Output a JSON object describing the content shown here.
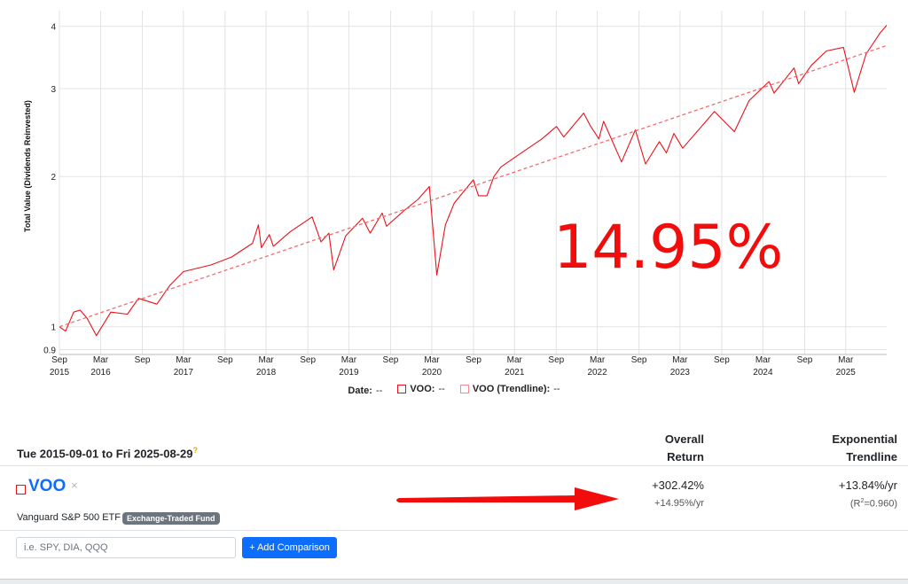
{
  "chart_data": {
    "type": "line",
    "ylabel": "Total Value (Dividends Reinvested)",
    "y_scale": "log",
    "ylim": [
      0.88,
      4.3
    ],
    "yticks": [
      {
        "value": 0.9,
        "label": "0.9"
      },
      {
        "value": 1,
        "label": "1"
      },
      {
        "value": 2,
        "label": "2"
      },
      {
        "value": 3,
        "label": "3"
      },
      {
        "value": 4,
        "label": "4"
      }
    ],
    "xlim": [
      "2015-09-01",
      "2025-08-29"
    ],
    "xticks": [
      {
        "date": "2015-09-01",
        "line1": "Sep",
        "line2": "2015"
      },
      {
        "date": "2016-03-01",
        "line1": "Mar",
        "line2": "2016"
      },
      {
        "date": "2016-09-01",
        "line1": "Sep",
        "line2": ""
      },
      {
        "date": "2017-03-01",
        "line1": "Mar",
        "line2": "2017"
      },
      {
        "date": "2017-09-01",
        "line1": "Sep",
        "line2": ""
      },
      {
        "date": "2018-03-01",
        "line1": "Mar",
        "line2": "2018"
      },
      {
        "date": "2018-09-01",
        "line1": "Sep",
        "line2": ""
      },
      {
        "date": "2019-03-01",
        "line1": "Mar",
        "line2": "2019"
      },
      {
        "date": "2019-09-01",
        "line1": "Sep",
        "line2": ""
      },
      {
        "date": "2020-03-01",
        "line1": "Mar",
        "line2": "2020"
      },
      {
        "date": "2020-09-01",
        "line1": "Sep",
        "line2": ""
      },
      {
        "date": "2021-03-01",
        "line1": "Mar",
        "line2": "2021"
      },
      {
        "date": "2021-09-01",
        "line1": "Sep",
        "line2": ""
      },
      {
        "date": "2022-03-01",
        "line1": "Mar",
        "line2": "2022"
      },
      {
        "date": "2022-09-01",
        "line1": "Sep",
        "line2": ""
      },
      {
        "date": "2023-03-01",
        "line1": "Mar",
        "line2": "2023"
      },
      {
        "date": "2023-09-01",
        "line1": "Sep",
        "line2": ""
      },
      {
        "date": "2024-03-01",
        "line1": "Mar",
        "line2": "2024"
      },
      {
        "date": "2024-09-01",
        "line1": "Sep",
        "line2": ""
      },
      {
        "date": "2025-03-01",
        "line1": "Mar",
        "line2": "2025"
      }
    ],
    "grid": true,
    "series": [
      {
        "name": "VOO",
        "color": "#e8121b",
        "style": "solid",
        "points": [
          [
            "2015-09-01",
            1.0
          ],
          [
            "2015-09-28",
            0.98
          ],
          [
            "2015-11-03",
            1.07
          ],
          [
            "2015-12-01",
            1.08
          ],
          [
            "2016-01-01",
            1.04
          ],
          [
            "2016-02-11",
            0.96
          ],
          [
            "2016-04-15",
            1.07
          ],
          [
            "2016-06-27",
            1.06
          ],
          [
            "2016-08-15",
            1.14
          ],
          [
            "2016-11-04",
            1.11
          ],
          [
            "2016-12-31",
            1.21
          ],
          [
            "2017-03-01",
            1.29
          ],
          [
            "2017-06-30",
            1.33
          ],
          [
            "2017-09-30",
            1.38
          ],
          [
            "2017-12-31",
            1.47
          ],
          [
            "2018-01-26",
            1.6
          ],
          [
            "2018-02-08",
            1.44
          ],
          [
            "2018-03-15",
            1.53
          ],
          [
            "2018-04-02",
            1.45
          ],
          [
            "2018-06-15",
            1.55
          ],
          [
            "2018-09-20",
            1.66
          ],
          [
            "2018-10-29",
            1.48
          ],
          [
            "2018-12-03",
            1.54
          ],
          [
            "2018-12-24",
            1.3
          ],
          [
            "2019-02-15",
            1.52
          ],
          [
            "2019-04-30",
            1.65
          ],
          [
            "2019-06-03",
            1.54
          ],
          [
            "2019-07-26",
            1.69
          ],
          [
            "2019-08-14",
            1.59
          ],
          [
            "2019-10-31",
            1.71
          ],
          [
            "2019-12-31",
            1.8
          ],
          [
            "2020-02-19",
            1.91
          ],
          [
            "2020-03-23",
            1.27
          ],
          [
            "2020-04-30",
            1.6
          ],
          [
            "2020-06-08",
            1.77
          ],
          [
            "2020-08-31",
            1.97
          ],
          [
            "2020-09-23",
            1.83
          ],
          [
            "2020-10-30",
            1.83
          ],
          [
            "2020-11-30",
            2.0
          ],
          [
            "2020-12-31",
            2.09
          ],
          [
            "2021-03-31",
            2.23
          ],
          [
            "2021-06-30",
            2.38
          ],
          [
            "2021-09-02",
            2.52
          ],
          [
            "2021-10-04",
            2.4
          ],
          [
            "2021-12-31",
            2.68
          ],
          [
            "2022-01-31",
            2.52
          ],
          [
            "2022-03-08",
            2.38
          ],
          [
            "2022-03-29",
            2.58
          ],
          [
            "2022-06-16",
            2.14
          ],
          [
            "2022-08-16",
            2.48
          ],
          [
            "2022-09-30",
            2.12
          ],
          [
            "2022-11-30",
            2.35
          ],
          [
            "2022-12-31",
            2.23
          ],
          [
            "2023-02-02",
            2.44
          ],
          [
            "2023-03-13",
            2.28
          ],
          [
            "2023-06-30",
            2.6
          ],
          [
            "2023-07-31",
            2.7
          ],
          [
            "2023-10-27",
            2.46
          ],
          [
            "2023-12-31",
            2.84
          ],
          [
            "2024-03-28",
            3.1
          ],
          [
            "2024-04-19",
            2.94
          ],
          [
            "2024-07-16",
            3.3
          ],
          [
            "2024-08-05",
            3.07
          ],
          [
            "2024-09-30",
            3.34
          ],
          [
            "2024-12-06",
            3.57
          ],
          [
            "2025-02-19",
            3.63
          ],
          [
            "2025-04-08",
            2.95
          ],
          [
            "2025-05-30",
            3.52
          ],
          [
            "2025-07-31",
            3.88
          ],
          [
            "2025-08-29",
            4.02
          ]
        ]
      },
      {
        "name": "VOO (Trendline)",
        "color": "#f56b70",
        "style": "dashed",
        "points": [
          [
            "2015-09-01",
            1.0
          ],
          [
            "2025-08-29",
            3.66
          ]
        ]
      }
    ],
    "legend": {
      "placement": "bottom",
      "date_label": "Date:",
      "date_value": "--",
      "items": [
        {
          "label": "VOO:",
          "value": "--"
        },
        {
          "label": "VOO (Trendline):",
          "value": "--"
        }
      ]
    },
    "annotation": "14.95%"
  },
  "table": {
    "period": "Tue 2015-09-01 to Fri 2025-08-29",
    "period_mark": "?",
    "col_return_line1": "Overall",
    "col_return_line2": "Return",
    "col_trend_line1": "Exponential",
    "col_trend_line2": "Trendline",
    "rows": [
      {
        "symbol": "VOO",
        "remove": "×",
        "name": "Vanguard S&P 500 ETF",
        "badge": "Exchange-Traded Fund",
        "return_total": "+302.42%",
        "return_yr": "+14.95%/yr",
        "trend_yr": "+13.84%/yr",
        "r2_prefix": "(R",
        "r2_exp": "2",
        "r2_suffix": "=0.960)"
      }
    ],
    "input_placeholder": "i.e. SPY, DIA, QQQ",
    "add_button": "+ Add Comparison"
  }
}
